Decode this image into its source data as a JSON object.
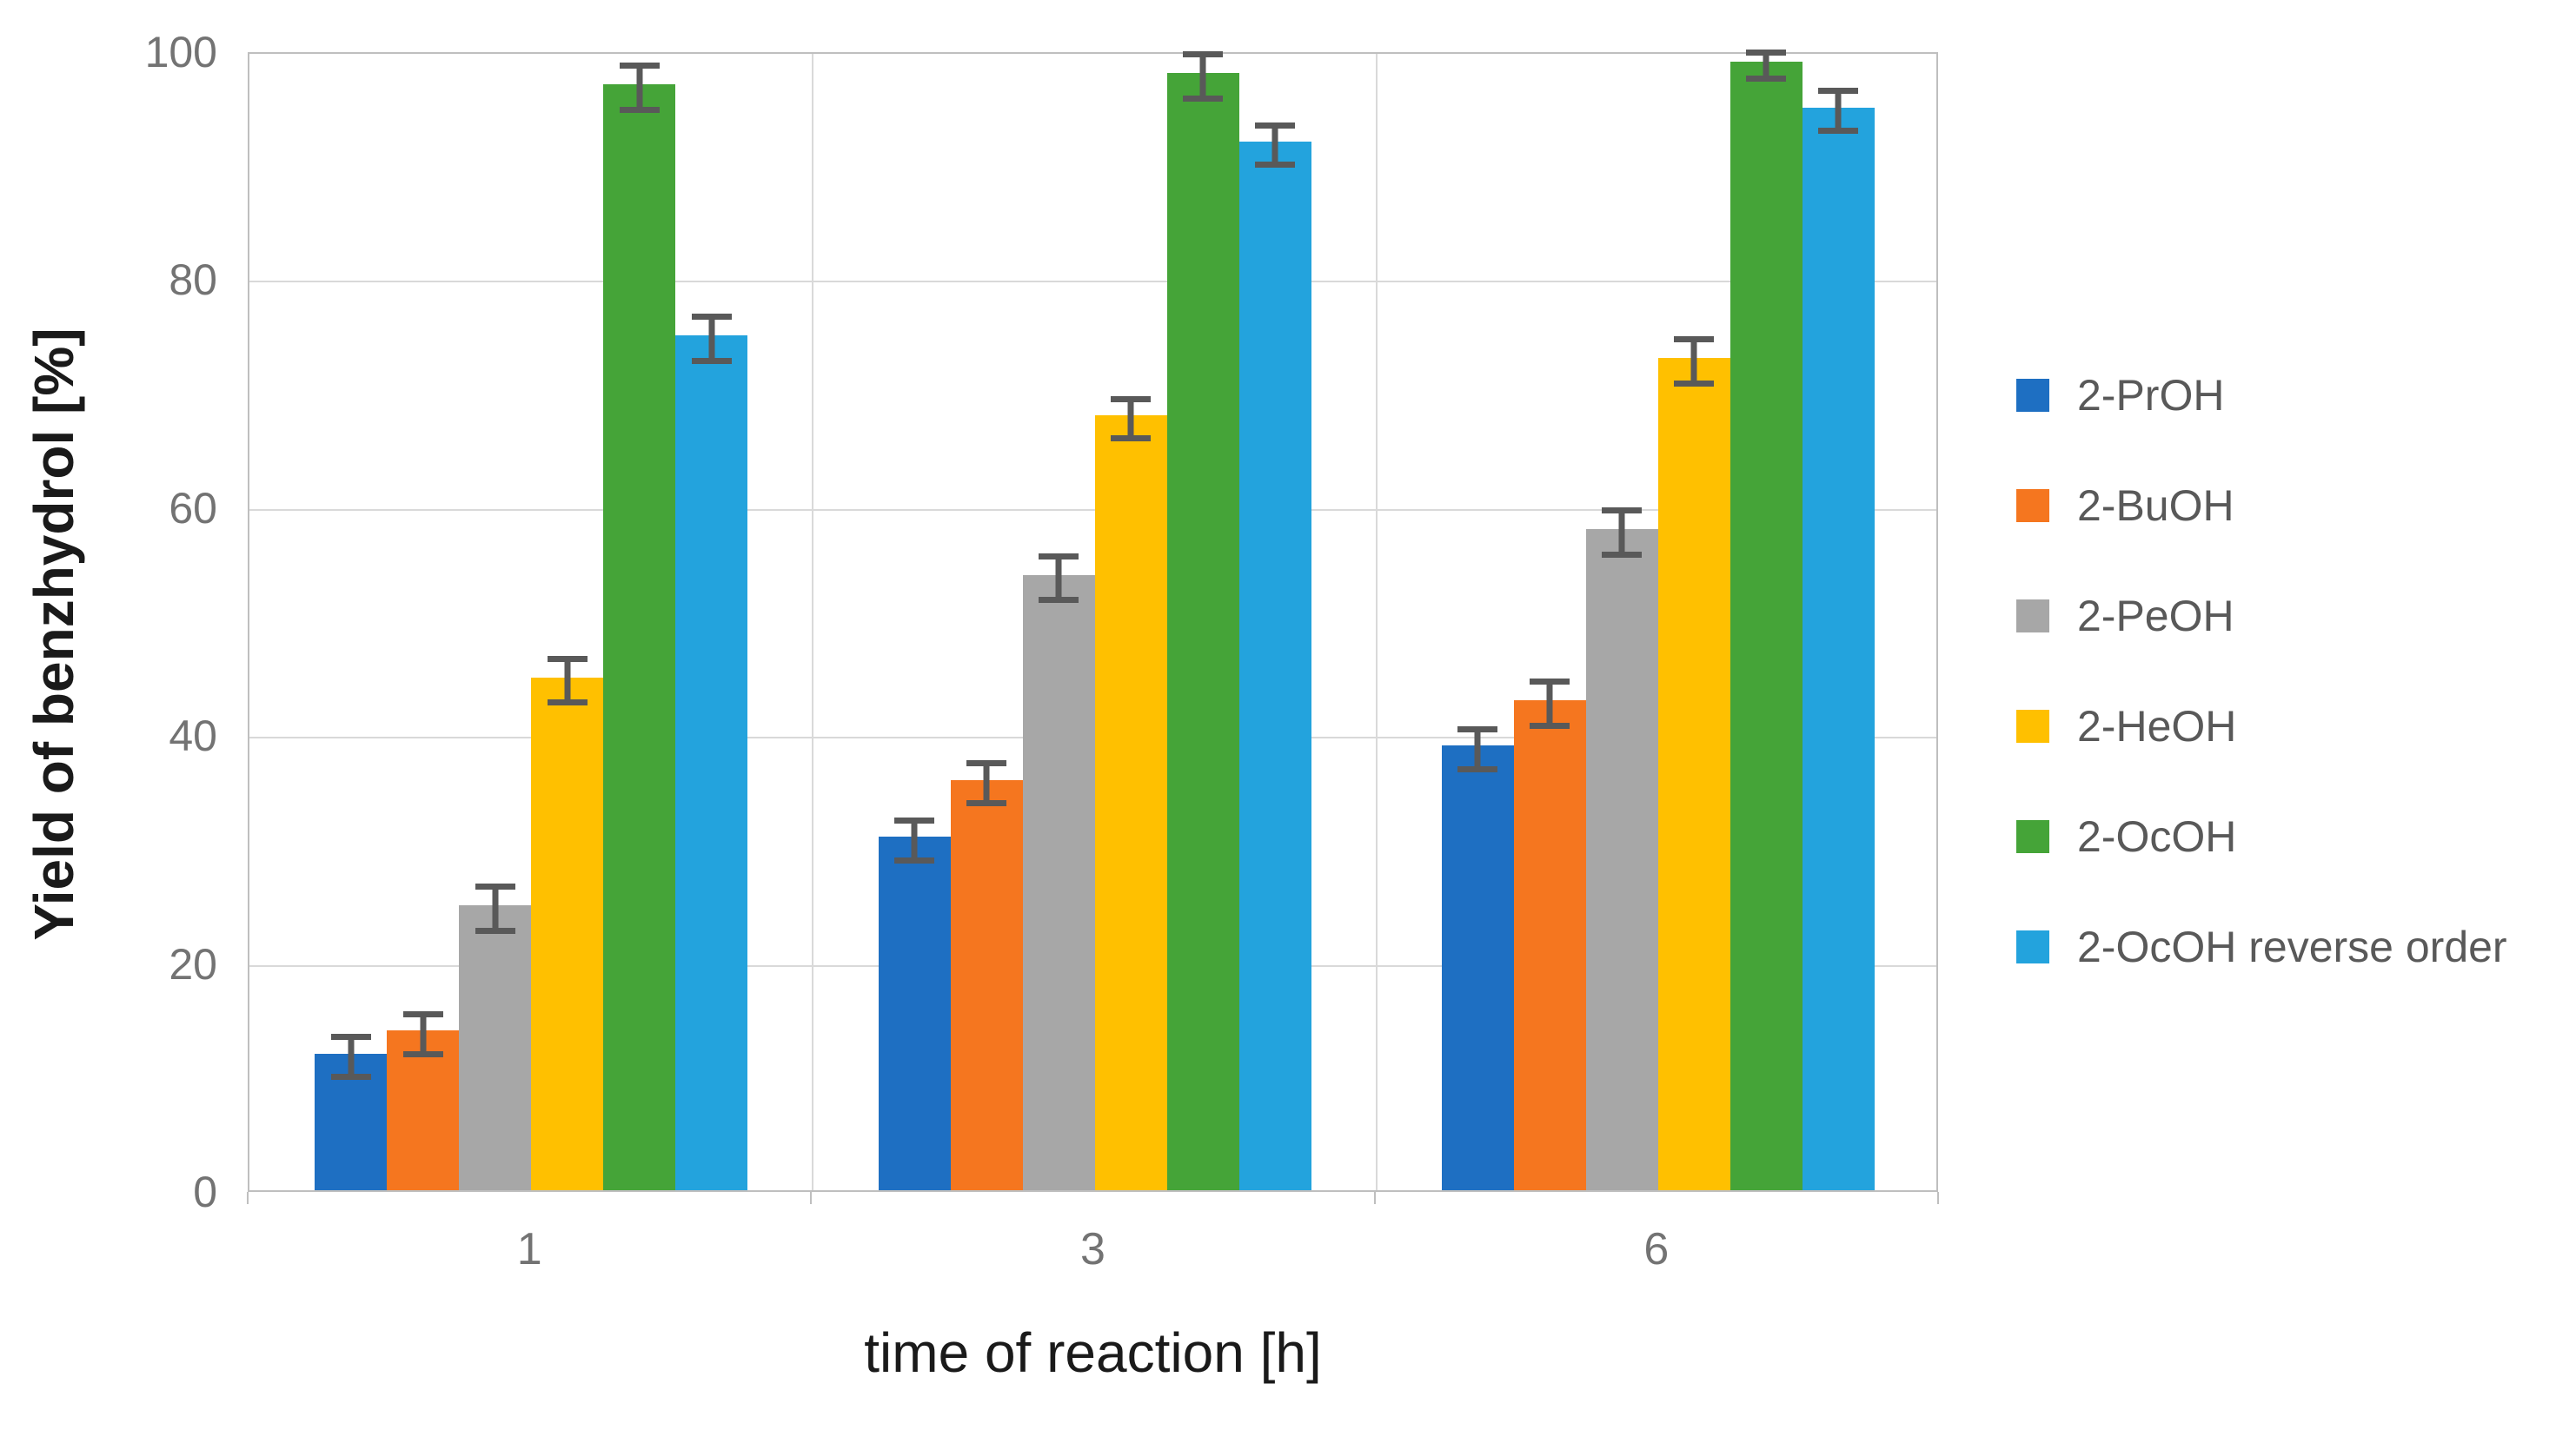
{
  "chart_data": {
    "type": "bar",
    "title": "",
    "xlabel": "time of reaction [h]",
    "ylabel": "Yield of benzhydrol [%]",
    "categories": [
      "1",
      "3",
      "6"
    ],
    "ylim": [
      0,
      100
    ],
    "yticks": [
      100,
      80,
      60,
      40,
      20,
      0
    ],
    "grid": true,
    "legend_position": "right",
    "error_bars": true,
    "series": [
      {
        "name": "2-PrOH",
        "color": "#1E6FC2",
        "values": [
          12,
          31,
          39
        ],
        "errors": [
          2.0,
          2.0,
          2.0
        ]
      },
      {
        "name": "2-BuOH",
        "color": "#F5761F",
        "values": [
          14,
          36,
          43
        ],
        "errors": [
          2.0,
          2.0,
          2.2
        ]
      },
      {
        "name": "2-PeOH",
        "color": "#A7A7A7",
        "values": [
          25,
          54,
          58
        ],
        "errors": [
          2.2,
          2.2,
          2.2
        ]
      },
      {
        "name": "2-HeOH",
        "color": "#FFC000",
        "values": [
          45,
          68,
          73
        ],
        "errors": [
          2.2,
          2.0,
          2.2
        ]
      },
      {
        "name": "2-OcOH",
        "color": "#45A438",
        "values": [
          97,
          98,
          99
        ],
        "errors": [
          2.2,
          2.2,
          1.4
        ]
      },
      {
        "name": "2-OcOH reverse order",
        "color": "#23A3DD",
        "values": [
          75,
          92,
          95
        ],
        "errors": [
          2.2,
          2.0,
          2.0
        ]
      }
    ],
    "colors": {
      "grid": "#D9D9D9",
      "axis_border": "#BFBFBF",
      "tick_label": "#737373",
      "axis_title": "#1A1A1A",
      "error_bar": "#595959",
      "legend_text": "#595959",
      "background": "#FFFFFF"
    }
  }
}
